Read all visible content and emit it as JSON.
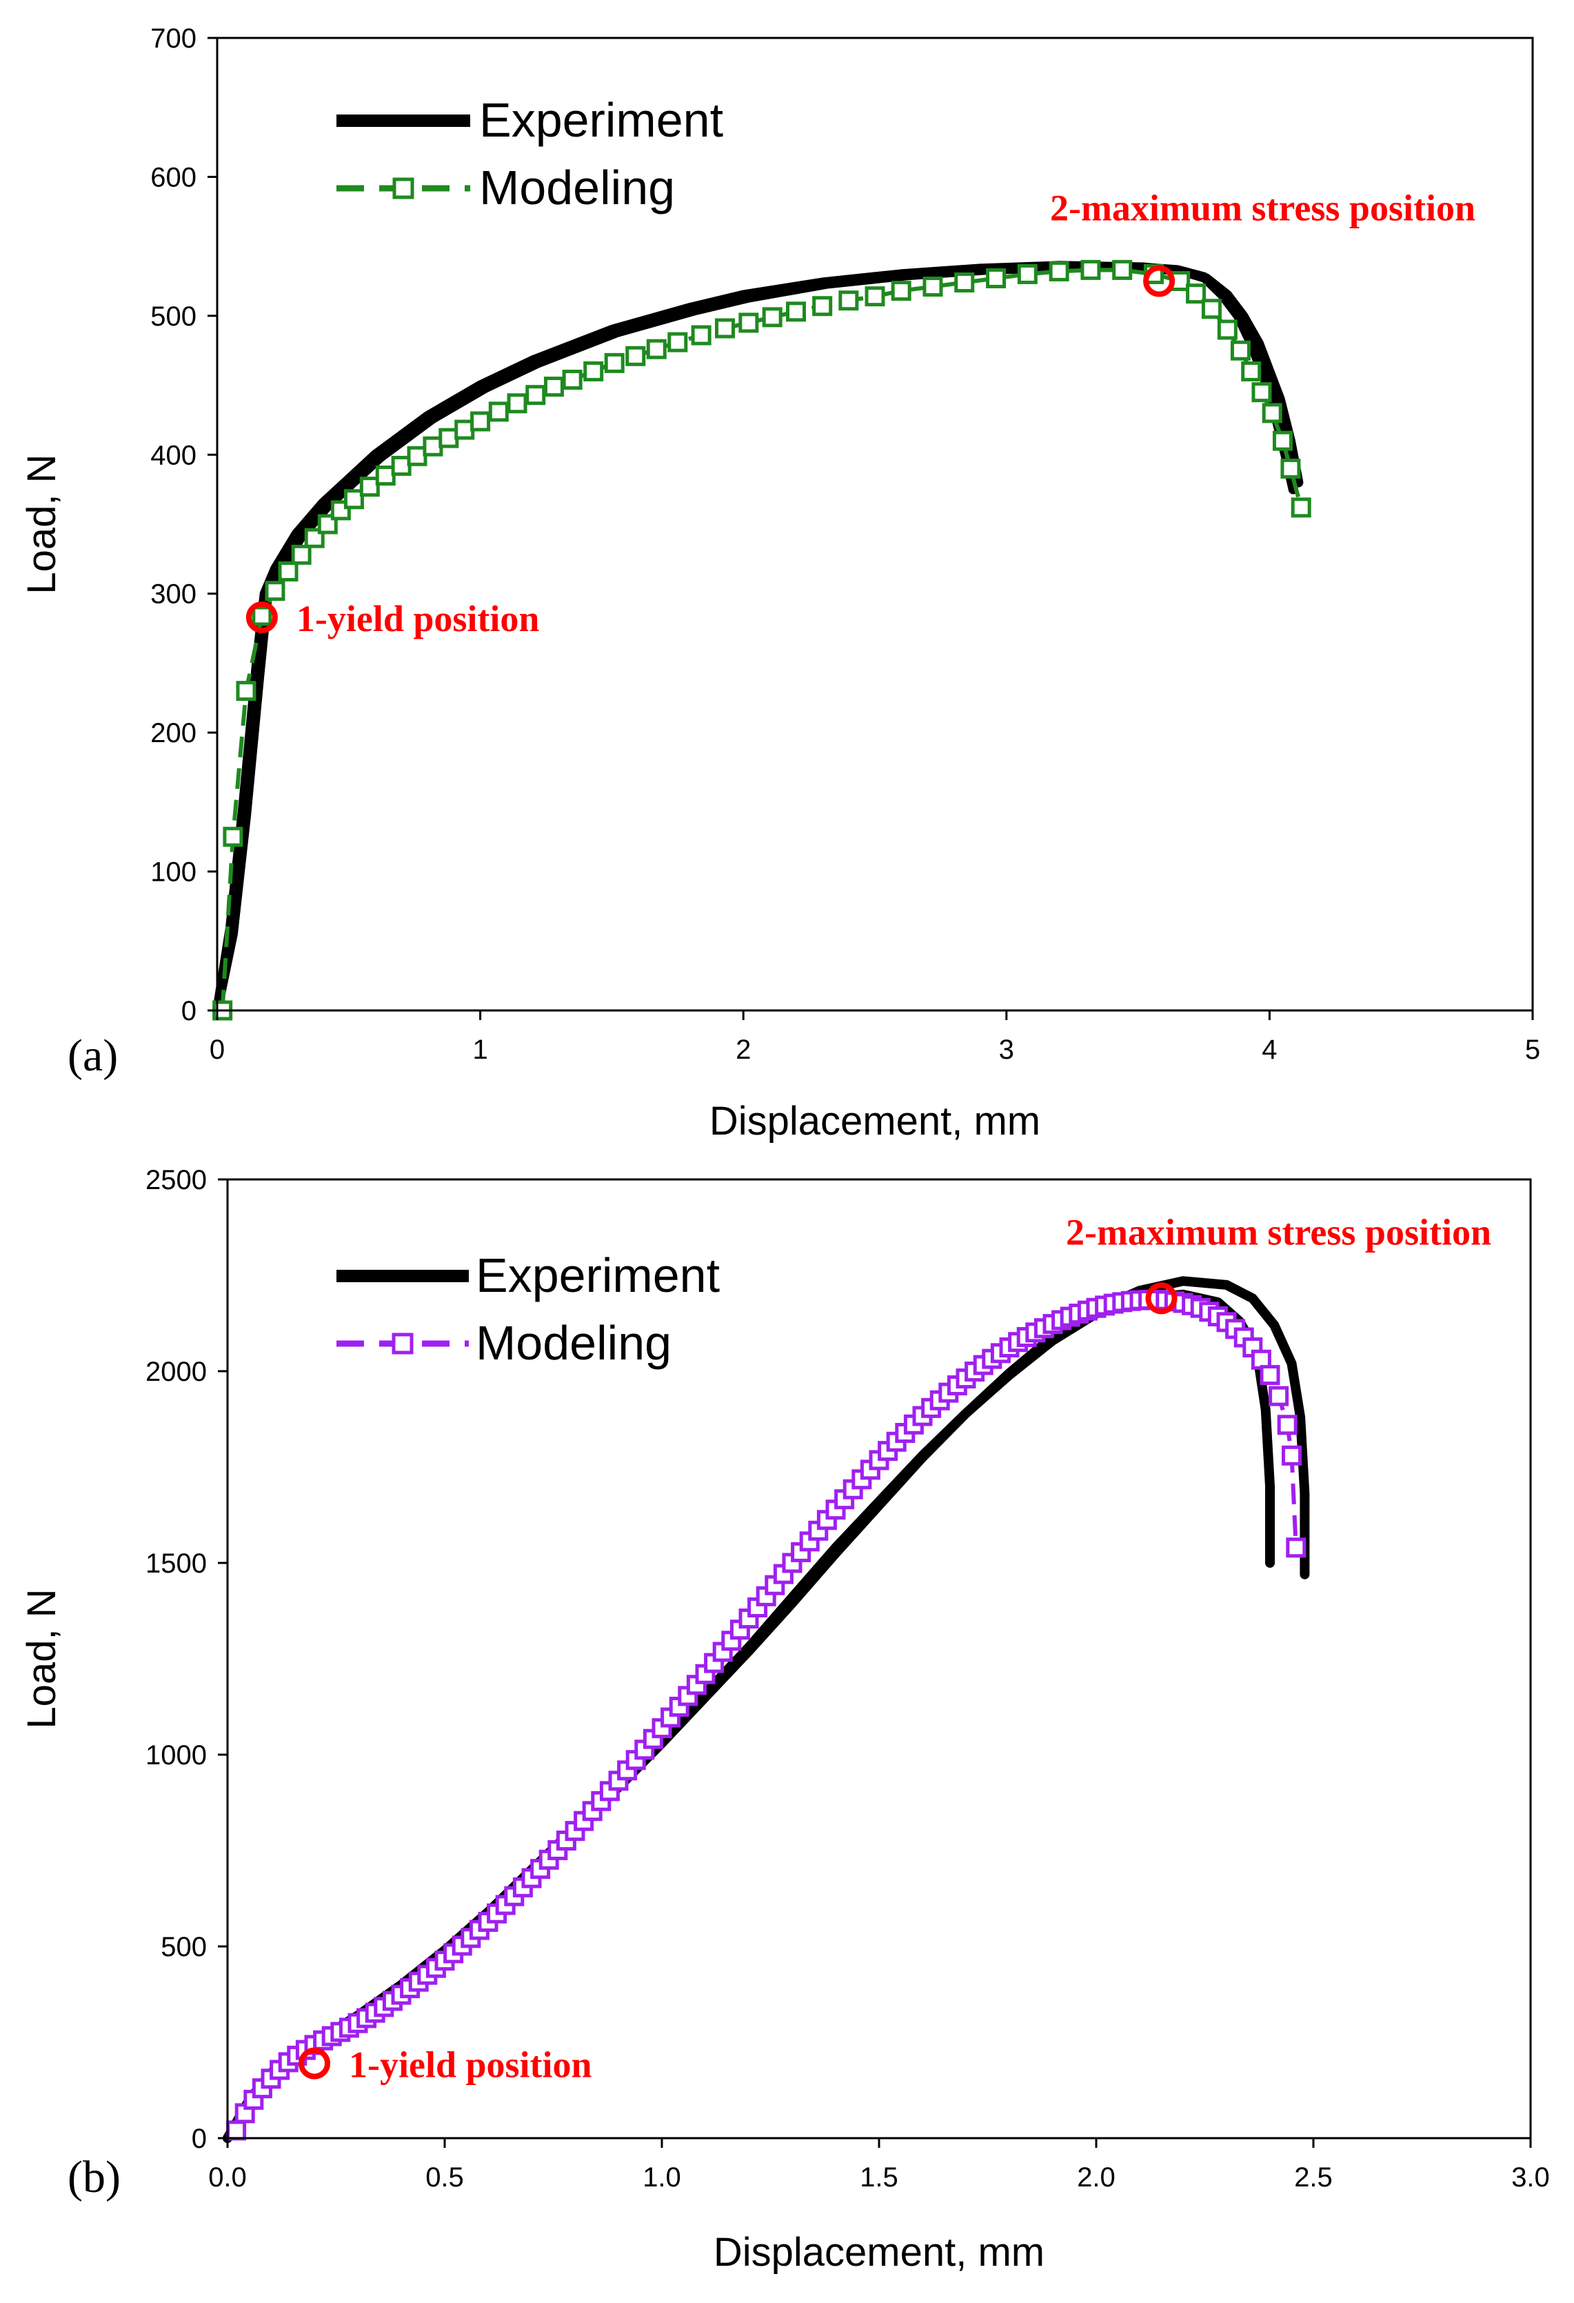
{
  "chart_data": [
    {
      "type": "line",
      "panel_label": "(a)",
      "xlabel": "Displacement, mm",
      "ylabel": "Load, N",
      "xlim": [
        0,
        5
      ],
      "ylim": [
        0,
        700
      ],
      "xticks": [
        0,
        1,
        2,
        3,
        4,
        5
      ],
      "yticks": [
        0,
        100,
        200,
        300,
        400,
        500,
        600,
        700
      ],
      "xtick_labels": [
        "0",
        "1",
        "2",
        "3",
        "4",
        "5"
      ],
      "ytick_labels": [
        "0",
        "100",
        "200",
        "300",
        "400",
        "500",
        "600",
        "700"
      ],
      "legend": {
        "placement": "top-left",
        "entries": [
          "Experiment",
          "Modeling"
        ]
      },
      "colors": {
        "experiment": "#000000",
        "modeling": "#1f8a1f",
        "annotation": "#ff0000"
      },
      "series": [
        {
          "name": "Experiment",
          "style": "thick-line",
          "x": [
            0,
            0.05,
            0.1,
            0.15,
            0.18,
            0.22,
            0.3,
            0.4,
            0.6,
            0.8,
            1.0,
            1.2,
            1.5,
            1.8,
            2.0,
            2.3,
            2.6,
            2.9,
            3.2,
            3.5,
            3.65,
            3.75,
            3.82,
            3.88,
            3.93,
            3.98,
            4.02,
            4.06,
            4.09
          ],
          "y": [
            0,
            60,
            150,
            250,
            300,
            318,
            343,
            365,
            400,
            428,
            450,
            468,
            490,
            506,
            515,
            524,
            530,
            534,
            536,
            535,
            533,
            528,
            515,
            500,
            480,
            455,
            430,
            400,
            375
          ]
        },
        {
          "name": "Experiment",
          "style": "thick-line",
          "x": [
            0,
            0.06,
            0.11,
            0.16,
            0.19,
            0.24,
            0.32,
            0.42,
            0.62,
            0.82,
            1.02,
            1.22,
            1.52,
            1.82,
            2.02,
            2.32,
            2.62,
            2.92,
            3.22,
            3.52,
            3.67,
            3.76,
            3.84,
            3.9,
            3.96,
            4.0,
            4.04,
            4.08,
            4.11
          ],
          "y": [
            0,
            55,
            140,
            240,
            296,
            316,
            341,
            363,
            398,
            426,
            448,
            466,
            488,
            504,
            513,
            523,
            529,
            533,
            535,
            535,
            532,
            527,
            515,
            500,
            480,
            460,
            440,
            410,
            380
          ]
        },
        {
          "name": "Modeling",
          "style": "dash-square",
          "x": [
            0.02,
            0.06,
            0.11,
            0.17,
            0.22,
            0.27,
            0.32,
            0.37,
            0.42,
            0.47,
            0.52,
            0.58,
            0.64,
            0.7,
            0.76,
            0.82,
            0.88,
            0.94,
            1.0,
            1.07,
            1.14,
            1.21,
            1.28,
            1.35,
            1.43,
            1.51,
            1.59,
            1.67,
            1.75,
            1.84,
            1.93,
            2.02,
            2.11,
            2.2,
            2.3,
            2.4,
            2.5,
            2.6,
            2.72,
            2.84,
            2.96,
            3.08,
            3.2,
            3.32,
            3.44,
            3.56,
            3.66,
            3.72,
            3.78,
            3.84,
            3.89,
            3.93,
            3.97,
            4.01,
            4.05,
            4.08,
            4.12
          ],
          "y": [
            0,
            125,
            230,
            284,
            302,
            316,
            328,
            340,
            350,
            360,
            368,
            377,
            385,
            392,
            399,
            406,
            412,
            418,
            424,
            431,
            437,
            443,
            449,
            454,
            460,
            466,
            471,
            476,
            481,
            486,
            491,
            495,
            499,
            503,
            507,
            511,
            514,
            518,
            521,
            524,
            527,
            530,
            532,
            533,
            533,
            530,
            525,
            516,
            505,
            490,
            475,
            460,
            445,
            430,
            410,
            390,
            362
          ]
        }
      ],
      "annotations": [
        {
          "text": "1-yield position",
          "x": 0.17,
          "y": 283
        },
        {
          "text": "2-maximum stress position",
          "x": 3.58,
          "y": 525
        }
      ]
    },
    {
      "type": "line",
      "panel_label": "(b)",
      "xlabel": "Displacement, mm",
      "ylabel": "Load, N",
      "xlim": [
        0,
        3.0
      ],
      "ylim": [
        0,
        2500
      ],
      "xticks": [
        0,
        0.5,
        1.0,
        1.5,
        2.0,
        2.5,
        3.0
      ],
      "yticks": [
        0,
        500,
        1000,
        1500,
        2000,
        2500
      ],
      "xtick_labels": [
        "0.0",
        "0.5",
        "1.0",
        "1.5",
        "2.0",
        "2.5",
        "3.0"
      ],
      "ytick_labels": [
        "0",
        "500",
        "1000",
        "1500",
        "2000",
        "2500"
      ],
      "legend": {
        "placement": "top-left",
        "entries": [
          "Experiment",
          "Modeling"
        ]
      },
      "colors": {
        "experiment": "#000000",
        "modeling": "#a020f0",
        "annotation": "#ff0000"
      },
      "series": [
        {
          "name": "Experiment",
          "style": "thick-line",
          "x": [
            0,
            0.05,
            0.1,
            0.15,
            0.2,
            0.3,
            0.4,
            0.5,
            0.6,
            0.7,
            0.8,
            0.9,
            1.0,
            1.1,
            1.2,
            1.3,
            1.4,
            1.5,
            1.6,
            1.7,
            1.8,
            1.9,
            2.0,
            2.1,
            2.2,
            2.28,
            2.33,
            2.37,
            2.39,
            2.4,
            2.4
          ],
          "y": [
            0,
            100,
            170,
            215,
            250,
            320,
            400,
            490,
            590,
            700,
            810,
            925,
            1040,
            1160,
            1280,
            1410,
            1540,
            1660,
            1780,
            1890,
            1990,
            2080,
            2150,
            2190,
            2200,
            2180,
            2130,
            2050,
            1900,
            1700,
            1500
          ]
        },
        {
          "name": "Experiment",
          "style": "thick-line",
          "x": [
            0,
            0.05,
            0.1,
            0.15,
            0.2,
            0.3,
            0.4,
            0.5,
            0.6,
            0.7,
            0.8,
            0.9,
            1.0,
            1.1,
            1.2,
            1.3,
            1.4,
            1.5,
            1.6,
            1.7,
            1.8,
            1.9,
            2.0,
            2.1,
            2.2,
            2.3,
            2.36,
            2.41,
            2.45,
            2.47,
            2.48,
            2.48
          ],
          "y": [
            0,
            90,
            160,
            205,
            240,
            310,
            390,
            480,
            580,
            690,
            800,
            915,
            1030,
            1150,
            1270,
            1395,
            1525,
            1650,
            1775,
            1890,
            1995,
            2090,
            2160,
            2210,
            2235,
            2225,
            2190,
            2120,
            2020,
            1880,
            1680,
            1470
          ]
        },
        {
          "name": "Modeling",
          "style": "dash-square",
          "x": [
            0.02,
            0.04,
            0.06,
            0.08,
            0.1,
            0.12,
            0.14,
            0.16,
            0.18,
            0.2,
            0.22,
            0.24,
            0.26,
            0.28,
            0.3,
            0.32,
            0.34,
            0.36,
            0.38,
            0.4,
            0.42,
            0.44,
            0.46,
            0.48,
            0.5,
            0.52,
            0.54,
            0.56,
            0.58,
            0.6,
            0.62,
            0.64,
            0.66,
            0.68,
            0.7,
            0.72,
            0.74,
            0.76,
            0.78,
            0.8,
            0.82,
            0.84,
            0.86,
            0.88,
            0.9,
            0.92,
            0.94,
            0.96,
            0.98,
            1.0,
            1.02,
            1.04,
            1.06,
            1.08,
            1.1,
            1.12,
            1.14,
            1.16,
            1.18,
            1.2,
            1.22,
            1.24,
            1.26,
            1.28,
            1.3,
            1.32,
            1.34,
            1.36,
            1.38,
            1.4,
            1.42,
            1.44,
            1.46,
            1.48,
            1.5,
            1.52,
            1.54,
            1.56,
            1.58,
            1.6,
            1.62,
            1.64,
            1.66,
            1.68,
            1.7,
            1.72,
            1.74,
            1.76,
            1.78,
            1.8,
            1.82,
            1.84,
            1.86,
            1.88,
            1.9,
            1.92,
            1.94,
            1.96,
            1.98,
            2.0,
            2.02,
            2.04,
            2.06,
            2.08,
            2.1,
            2.12,
            2.14,
            2.16,
            2.18,
            2.2,
            2.22,
            2.24,
            2.26,
            2.28,
            2.3,
            2.32,
            2.34,
            2.36,
            2.38,
            2.4,
            2.42,
            2.44,
            2.45,
            2.46
          ],
          "y": [
            20,
            65,
            100,
            130,
            155,
            178,
            198,
            215,
            230,
            243,
            255,
            266,
            277,
            288,
            300,
            313,
            327,
            342,
            358,
            374,
            391,
            408,
            426,
            444,
            463,
            482,
            502,
            522,
            543,
            564,
            586,
            608,
            631,
            654,
            678,
            702,
            726,
            751,
            776,
            801,
            827,
            853,
            879,
            905,
            932,
            959,
            986,
            1013,
            1041,
            1069,
            1097,
            1125,
            1153,
            1182,
            1210,
            1239,
            1268,
            1297,
            1326,
            1355,
            1384,
            1413,
            1442,
            1471,
            1500,
            1528,
            1556,
            1584,
            1612,
            1639,
            1666,
            1692,
            1718,
            1743,
            1768,
            1792,
            1816,
            1839,
            1861,
            1883,
            1904,
            1924,
            1944,
            1963,
            1981,
            1999,
            2016,
            2032,
            2047,
            2062,
            2076,
            2089,
            2101,
            2112,
            2123,
            2133,
            2142,
            2150,
            2158,
            2165,
            2171,
            2176,
            2180,
            2183,
            2185,
            2186,
            2186,
            2185,
            2182,
            2178,
            2172,
            2165,
            2155,
            2143,
            2128,
            2110,
            2088,
            2062,
            2030,
            1990,
            1935,
            1860,
            1780,
            1540
          ]
        }
      ],
      "annotations": [
        {
          "text": "1-yield position",
          "x": 0.2,
          "y": 195
        },
        {
          "text": "2-maximum stress position",
          "x": 2.15,
          "y": 2190
        }
      ]
    }
  ]
}
